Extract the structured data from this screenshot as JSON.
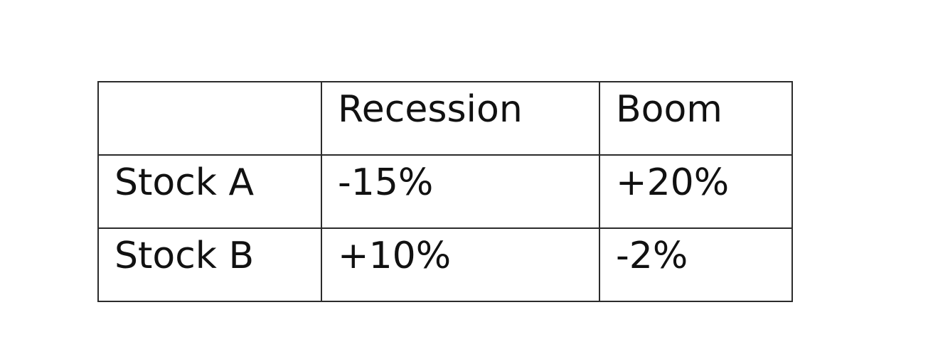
{
  "table": {
    "header": {
      "corner": "",
      "recession": "Recession",
      "boom": "Boom"
    },
    "rows": [
      {
        "label": "Stock A",
        "recession": "-15%",
        "boom": "+20%"
      },
      {
        "label": "Stock B",
        "recession": "+10%",
        "boom": "-2%"
      }
    ]
  }
}
